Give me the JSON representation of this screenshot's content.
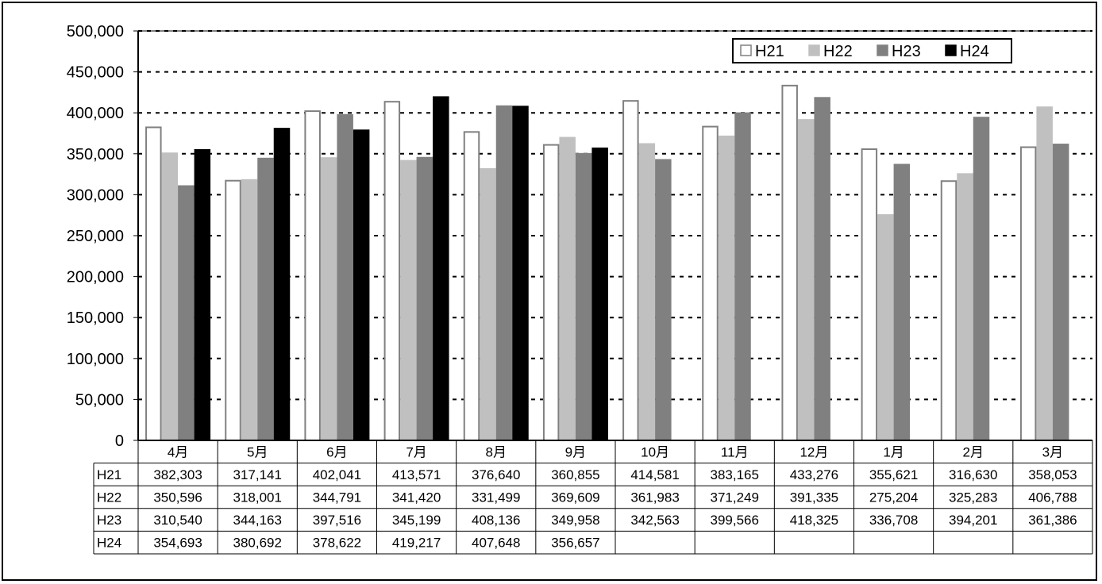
{
  "chart_data": {
    "type": "bar",
    "categories": [
      "4月",
      "5月",
      "6月",
      "7月",
      "8月",
      "9月",
      "10月",
      "11月",
      "12月",
      "1月",
      "2月",
      "3月"
    ],
    "series": [
      {
        "name": "H21",
        "color": "#ffffff",
        "stroke": "#808080",
        "values": [
          382303,
          317141,
          402041,
          413571,
          376640,
          360855,
          414581,
          383165,
          433276,
          355621,
          316630,
          358053
        ],
        "labels": [
          "382,303",
          "317,141",
          "402,041",
          "413,571",
          "376,640",
          "360,855",
          "414,581",
          "383,165",
          "433,276",
          "355,621",
          "316,630",
          "358,053"
        ]
      },
      {
        "name": "H22",
        "color": "#c0c0c0",
        "stroke": "#c0c0c0",
        "values": [
          350596,
          318001,
          344791,
          341420,
          331499,
          369609,
          361983,
          371249,
          391335,
          275204,
          325283,
          406788
        ],
        "labels": [
          "350,596",
          "318,001",
          "344,791",
          "341,420",
          "331,499",
          "369,609",
          "361,983",
          "371,249",
          "391,335",
          "275,204",
          "325,283",
          "406,788"
        ]
      },
      {
        "name": "H23",
        "color": "#808080",
        "stroke": "#808080",
        "values": [
          310540,
          344163,
          397516,
          345199,
          408136,
          349958,
          342563,
          399566,
          418325,
          336708,
          394201,
          361386
        ],
        "labels": [
          "310,540",
          "344,163",
          "397,516",
          "345,199",
          "408,136",
          "349,958",
          "342,563",
          "399,566",
          "418,325",
          "336,708",
          "394,201",
          "361,386"
        ]
      },
      {
        "name": "H24",
        "color": "#000000",
        "stroke": "#000000",
        "values": [
          354693,
          380692,
          378622,
          419217,
          407648,
          356657,
          null,
          null,
          null,
          null,
          null,
          null
        ],
        "labels": [
          "354,693",
          "380,692",
          "378,622",
          "419,217",
          "407,648",
          "356,657",
          "",
          "",
          "",
          "",
          "",
          ""
        ]
      }
    ],
    "yticks": [
      "0",
      "50,000",
      "100,000",
      "150,000",
      "200,000",
      "250,000",
      "300,000",
      "350,000",
      "400,000",
      "450,000",
      "500,000"
    ],
    "ylim": [
      0,
      500000
    ],
    "grid": "dashed horizontal",
    "legend": "top-right",
    "data_table": true
  }
}
